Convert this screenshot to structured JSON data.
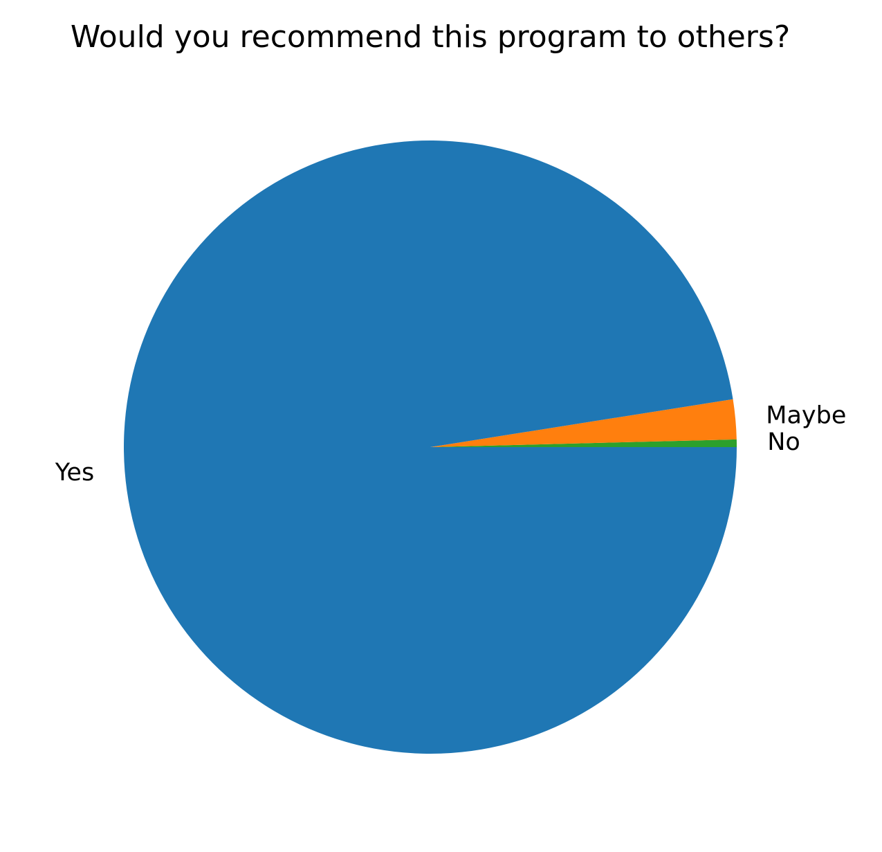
{
  "chart_data": {
    "type": "pie",
    "title": "Would you recommend this program to others?",
    "slices": [
      {
        "label": "No",
        "value": 0.4,
        "color": "#2ca02c"
      },
      {
        "label": "Maybe",
        "value": 2.1,
        "color": "#ff7f0e"
      },
      {
        "label": "Yes",
        "value": 97.5,
        "color": "#1f77b4"
      }
    ],
    "start_angle_deg": 0,
    "direction": "counterclockwise",
    "legend": false
  }
}
